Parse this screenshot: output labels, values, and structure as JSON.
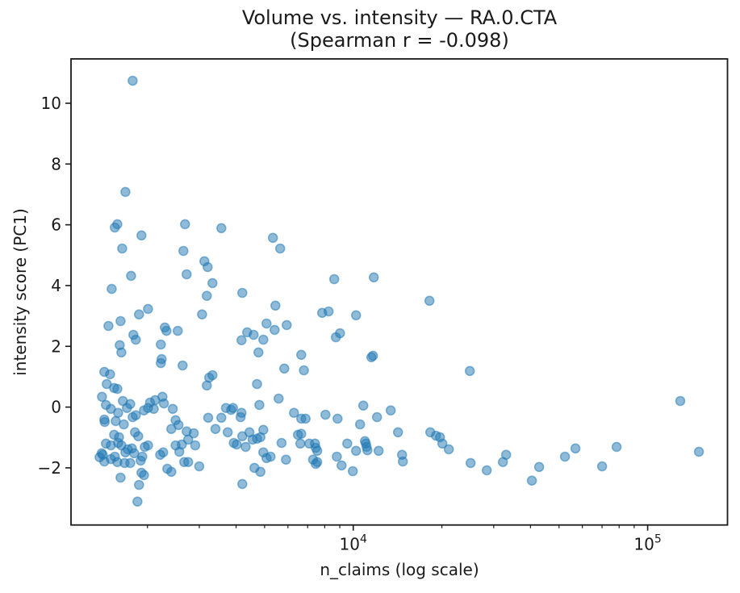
{
  "style": {
    "background": "#ffffff",
    "marker_color": "#1f77b4",
    "marker_alpha": 0.5,
    "marker_radius": 5.5,
    "axis_color": "#1a1a1a",
    "text_color": "#1a1a1a"
  },
  "chart_data": {
    "type": "scatter",
    "title": "Volume vs. intensity — RA.0.CTA",
    "subtitle": "(Spearman r = -0.098)",
    "spearman_r": -0.098,
    "xlabel": "n_claims (log scale)",
    "ylabel": "intensity score (PC1)",
    "x_scale": "log",
    "grid": false,
    "legend": "none",
    "xlim": [
      1100,
      186700
    ],
    "ylim": [
      -3.88,
      11.46
    ],
    "x_major_ticks": [
      {
        "value": 10000,
        "base": "10",
        "exp": "4"
      },
      {
        "value": 100000,
        "base": "10",
        "exp": "5"
      }
    ],
    "x_minor_ticks": [
      2000,
      3000,
      4000,
      5000,
      6000,
      7000,
      8000,
      9000,
      20000,
      30000,
      40000,
      50000,
      60000,
      70000,
      80000,
      90000
    ],
    "y_ticks": [
      -2,
      0,
      2,
      4,
      6,
      8,
      10
    ],
    "y_tick_labels": [
      "−2",
      "0",
      "2",
      "4",
      "6",
      "8",
      "10"
    ],
    "points": [
      [
        1781,
        10.74
      ],
      [
        1683,
        7.08
      ],
      [
        1550,
        5.91
      ],
      [
        1580,
        6.02
      ],
      [
        1909,
        5.65
      ],
      [
        1641,
        5.22
      ],
      [
        2684,
        6.02
      ],
      [
        3565,
        5.89
      ],
      [
        5337,
        5.57
      ],
      [
        5649,
        5.22
      ],
      [
        2650,
        5.14
      ],
      [
        3123,
        4.8
      ],
      [
        3203,
        4.61
      ],
      [
        2717,
        4.37
      ],
      [
        1759,
        4.32
      ],
      [
        3326,
        4.08
      ],
      [
        1512,
        3.89
      ],
      [
        3182,
        3.66
      ],
      [
        4200,
        3.76
      ],
      [
        5440,
        3.34
      ],
      [
        2008,
        3.23
      ],
      [
        1873,
        3.05
      ],
      [
        3065,
        3.05
      ],
      [
        1621,
        2.83
      ],
      [
        1474,
        2.67
      ],
      [
        5075,
        2.75
      ],
      [
        5406,
        2.54
      ],
      [
        5943,
        2.7
      ],
      [
        2292,
        2.62
      ],
      [
        2321,
        2.51
      ],
      [
        2536,
        2.51
      ],
      [
        1792,
        2.38
      ],
      [
        1826,
        2.22
      ],
      [
        4362,
        2.46
      ],
      [
        4588,
        2.38
      ],
      [
        4173,
        2.2
      ],
      [
        4948,
        2.22
      ],
      [
        1610,
        2.04
      ],
      [
        1631,
        1.8
      ],
      [
        2221,
        2.06
      ],
      [
        2235,
        1.58
      ],
      [
        2221,
        1.45
      ],
      [
        2633,
        1.37
      ],
      [
        4765,
        1.8
      ],
      [
        5832,
        1.27
      ],
      [
        8621,
        4.21
      ],
      [
        11745,
        4.27
      ],
      [
        18155,
        3.5
      ],
      [
        7843,
        3.1
      ],
      [
        8249,
        3.15
      ],
      [
        10224,
        3.02
      ],
      [
        8731,
        2.3
      ],
      [
        9013,
        2.43
      ],
      [
        6658,
        1.72
      ],
      [
        11671,
        1.69
      ],
      [
        1428,
        1.16
      ],
      [
        1493,
        1.08
      ],
      [
        1455,
        0.76
      ],
      [
        1541,
        0.63
      ],
      [
        1580,
        0.6
      ],
      [
        1402,
        0.34
      ],
      [
        1446,
        0.07
      ],
      [
        1502,
        -0.06
      ],
      [
        1651,
        0.2
      ],
      [
        1748,
        0.1
      ],
      [
        1590,
        -0.19
      ],
      [
        1704,
        -0.03
      ],
      [
        1428,
        -0.41
      ],
      [
        1432,
        -0.49
      ],
      [
        1560,
        -0.46
      ],
      [
        1662,
        -0.57
      ],
      [
        1781,
        -0.33
      ],
      [
        1826,
        -0.27
      ],
      [
        1541,
        -0.91
      ],
      [
        1601,
        -0.99
      ],
      [
        1446,
        -1.2
      ],
      [
        1502,
        -1.26
      ],
      [
        1590,
        -1.18
      ],
      [
        1631,
        -1.26
      ],
      [
        1398,
        -1.52
      ],
      [
        1410,
        -1.57
      ],
      [
        1375,
        -1.65
      ],
      [
        1502,
        -1.71
      ],
      [
        1550,
        -1.63
      ],
      [
        1683,
        -1.49
      ],
      [
        1715,
        -1.39
      ],
      [
        1770,
        -1.36
      ],
      [
        1803,
        -1.52
      ],
      [
        1428,
        -1.79
      ],
      [
        1580,
        -1.81
      ],
      [
        1673,
        -1.84
      ],
      [
        1748,
        -1.84
      ],
      [
        1621,
        -2.32
      ],
      [
        1849,
        -3.11
      ],
      [
        1873,
        -2.56
      ],
      [
        1909,
        -2.16
      ],
      [
        1946,
        -2.24
      ],
      [
        1897,
        -1.76
      ],
      [
        1921,
        -1.63
      ],
      [
        2008,
        -1.26
      ],
      [
        1959,
        -1.31
      ],
      [
        1861,
        -0.96
      ],
      [
        1815,
        -0.83
      ],
      [
        2008,
        -0.03
      ],
      [
        1946,
        -0.11
      ],
      [
        2125,
        0.23
      ],
      [
        2249,
        0.34
      ],
      [
        2275,
        0.12
      ],
      [
        2040,
        0.15
      ],
      [
        2100,
        -0.06
      ],
      [
        2209,
        -1.57
      ],
      [
        2262,
        -1.49
      ],
      [
        2336,
        -2.03
      ],
      [
        2411,
        -2.13
      ],
      [
        2438,
        -0.06
      ],
      [
        2493,
        -0.43
      ],
      [
        2550,
        -0.59
      ],
      [
        2411,
        -0.72
      ],
      [
        2493,
        -1.26
      ],
      [
        2566,
        -1.47
      ],
      [
        2617,
        -1.23
      ],
      [
        2717,
        -0.8
      ],
      [
        2751,
        -1.07
      ],
      [
        2873,
        -0.86
      ],
      [
        2905,
        -1.26
      ],
      [
        2667,
        -1.81
      ],
      [
        2751,
        -1.81
      ],
      [
        2998,
        -1.95
      ],
      [
        3182,
        0.71
      ],
      [
        3241,
        0.97
      ],
      [
        3326,
        1.05
      ],
      [
        3217,
        -0.35
      ],
      [
        3404,
        -0.72
      ],
      [
        3565,
        -0.35
      ],
      [
        3695,
        -0.03
      ],
      [
        3847,
        -0.09
      ],
      [
        3904,
        -0.03
      ],
      [
        3746,
        -0.83
      ],
      [
        3928,
        -1.18
      ],
      [
        4020,
        -1.23
      ],
      [
        4173,
        -0.19
      ],
      [
        4146,
        -0.33
      ],
      [
        4200,
        -0.96
      ],
      [
        4311,
        -1.31
      ],
      [
        4441,
        -0.83
      ],
      [
        4550,
        -1.07
      ],
      [
        4712,
        -1.04
      ],
      [
        4838,
        -0.99
      ],
      [
        4948,
        -0.75
      ],
      [
        4712,
        0.76
      ],
      [
        4800,
        0.07
      ],
      [
        4948,
        -1.49
      ],
      [
        4617,
        -2.0
      ],
      [
        4838,
        -2.13
      ],
      [
        4200,
        -2.53
      ],
      [
        5075,
        -1.68
      ],
      [
        5240,
        -1.63
      ],
      [
        5580,
        0.28
      ],
      [
        5710,
        -1.18
      ],
      [
        5909,
        -1.73
      ],
      [
        6490,
        -0.91
      ],
      [
        6612,
        -1.2
      ],
      [
        6658,
        -0.88
      ],
      [
        6290,
        -0.19
      ],
      [
        6658,
        -0.38
      ],
      [
        7093,
        -1.2
      ],
      [
        6798,
        1.21
      ],
      [
        24890,
        1.19
      ],
      [
        10820,
        0.05
      ],
      [
        8046,
        -0.25
      ],
      [
        8843,
        -0.38
      ],
      [
        6891,
        -0.38
      ],
      [
        12044,
        -0.33
      ],
      [
        13408,
        -0.11
      ],
      [
        10551,
        -0.57
      ],
      [
        14192,
        -0.83
      ],
      [
        11524,
        1.64
      ],
      [
        7458,
        -1.34
      ],
      [
        7543,
        -1.44
      ],
      [
        7415,
        -1.2
      ],
      [
        9539,
        -1.2
      ],
      [
        10224,
        -1.44
      ],
      [
        10958,
        -1.12
      ],
      [
        11040,
        -1.2
      ],
      [
        11100,
        -1.31
      ],
      [
        11170,
        -1.42
      ],
      [
        12198,
        -1.44
      ],
      [
        7302,
        -1.73
      ],
      [
        7458,
        -1.87
      ],
      [
        7543,
        -1.81
      ],
      [
        8795,
        -1.63
      ],
      [
        9127,
        -1.92
      ],
      [
        9968,
        -2.11
      ],
      [
        14650,
        -1.57
      ],
      [
        14740,
        -1.79
      ],
      [
        18270,
        -0.83
      ],
      [
        19090,
        -0.94
      ],
      [
        19700,
        -0.99
      ],
      [
        20080,
        -1.2
      ],
      [
        21120,
        -1.39
      ],
      [
        25040,
        -1.84
      ],
      [
        28410,
        -2.08
      ],
      [
        32240,
        -1.81
      ],
      [
        33050,
        -1.57
      ],
      [
        40440,
        -2.42
      ],
      [
        42810,
        -1.97
      ],
      [
        52380,
        -1.63
      ],
      [
        56850,
        -1.36
      ],
      [
        70000,
        -1.95
      ],
      [
        78440,
        -1.31
      ],
      [
        129100,
        0.2
      ],
      [
        149300,
        -1.47
      ]
    ]
  }
}
